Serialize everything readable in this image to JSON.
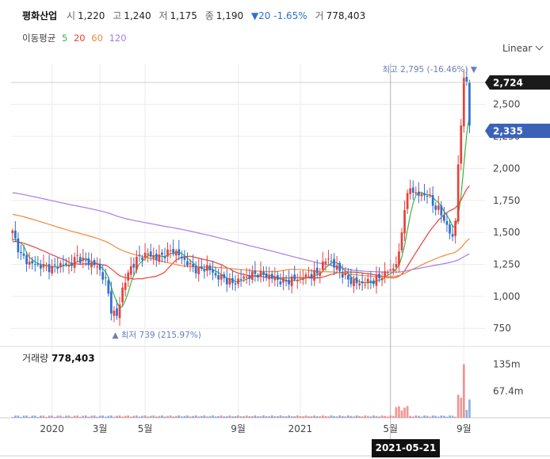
{
  "header": {
    "name": "평화산업",
    "open_label": "시",
    "open": "1,220",
    "high_label": "고",
    "high": "1,240",
    "low_label": "저",
    "low": "1,175",
    "close_label": "종",
    "close": "1,190",
    "change": "▼20 -1.65%",
    "volume_label": "거",
    "volume": "778,403"
  },
  "ma_legend": {
    "label": "이동평균",
    "items": [
      {
        "name": "5",
        "color": "#3bb54a"
      },
      {
        "name": "20",
        "color": "#e8423b"
      },
      {
        "name": "60",
        "color": "#f08a3c"
      },
      {
        "name": "120",
        "color": "#a57de8"
      }
    ]
  },
  "scale_mode": "Linear",
  "annotations": {
    "high_label": "최고 2,795 (-16.46%) ▼",
    "low_label": "▲ 최저 739 (215.97%)",
    "last_price_tag": "2,724",
    "current_tag": "2,335"
  },
  "volume_panel": {
    "title": "거래량",
    "value": "778,403"
  },
  "crosshair_date": "2021-05-21",
  "colors": {
    "up": "#e8423b",
    "down": "#2f6fd1",
    "grid": "#ececec"
  },
  "chart_data": {
    "type": "candlestick",
    "y_ticks": [
      "2,500",
      "2,250",
      "2,000",
      "1,750",
      "1,500",
      "1,250",
      "1,000",
      "750"
    ],
    "y_tick_values": [
      2500,
      2250,
      2000,
      1750,
      1500,
      1250,
      1000,
      750
    ],
    "ylim": [
      640,
      2820
    ],
    "x_ticks": [
      "2020",
      "3월",
      "5월",
      "9월",
      "2021",
      "5월",
      "9월"
    ],
    "x_tick_positions": [
      14,
      31,
      47,
      80,
      102,
      134,
      160
    ],
    "volume_ticks": [
      "135m",
      "67.4m"
    ],
    "volume_tick_values": [
      135,
      67.4
    ],
    "volume_ylim": [
      0,
      180
    ],
    "total_points": 168,
    "ohlc_nodes": [
      [
        0,
        1500
      ],
      [
        3,
        1320
      ],
      [
        6,
        1260
      ],
      [
        10,
        1240
      ],
      [
        14,
        1220
      ],
      [
        17,
        1250
      ],
      [
        20,
        1240
      ],
      [
        23,
        1310
      ],
      [
        26,
        1270
      ],
      [
        29,
        1250
      ],
      [
        31,
        1200
      ],
      [
        33,
        1120
      ],
      [
        35,
        900
      ],
      [
        37,
        840
      ],
      [
        39,
        1060
      ],
      [
        42,
        1230
      ],
      [
        45,
        1310
      ],
      [
        48,
        1330
      ],
      [
        51,
        1300
      ],
      [
        54,
        1330
      ],
      [
        57,
        1360
      ],
      [
        60,
        1300
      ],
      [
        63,
        1240
      ],
      [
        66,
        1200
      ],
      [
        69,
        1230
      ],
      [
        72,
        1160
      ],
      [
        75,
        1140
      ],
      [
        78,
        1100
      ],
      [
        81,
        1140
      ],
      [
        84,
        1160
      ],
      [
        87,
        1180
      ],
      [
        90,
        1160
      ],
      [
        93,
        1140
      ],
      [
        96,
        1110
      ],
      [
        99,
        1130
      ],
      [
        102,
        1140
      ],
      [
        105,
        1160
      ],
      [
        108,
        1180
      ],
      [
        110,
        1250
      ],
      [
        112,
        1300
      ],
      [
        114,
        1240
      ],
      [
        116,
        1200
      ],
      [
        118,
        1150
      ],
      [
        120,
        1120
      ],
      [
        123,
        1100
      ],
      [
        126,
        1110
      ],
      [
        129,
        1130
      ],
      [
        132,
        1180
      ],
      [
        135,
        1220
      ],
      [
        137,
        1320
      ],
      [
        139,
        1700
      ],
      [
        141,
        1850
      ],
      [
        143,
        1800
      ],
      [
        145,
        1790
      ],
      [
        147,
        1800
      ],
      [
        149,
        1720
      ],
      [
        151,
        1680
      ],
      [
        153,
        1600
      ],
      [
        155,
        1500
      ],
      [
        156,
        1450
      ],
      [
        157,
        1600
      ],
      [
        158,
        2050
      ],
      [
        159,
        2300
      ],
      [
        160,
        2720
      ],
      [
        161,
        2700
      ],
      [
        162,
        2335
      ]
    ],
    "ma_series": [
      {
        "name": "5",
        "period": 5
      },
      {
        "name": "20",
        "period": 20
      },
      {
        "name": "60",
        "period": 60
      },
      {
        "name": "120",
        "period": 120
      }
    ],
    "low_point": {
      "value": 739,
      "index": 37
    },
    "high_point": {
      "value": 2795,
      "index": 160
    },
    "crosshair_index": 134
  }
}
